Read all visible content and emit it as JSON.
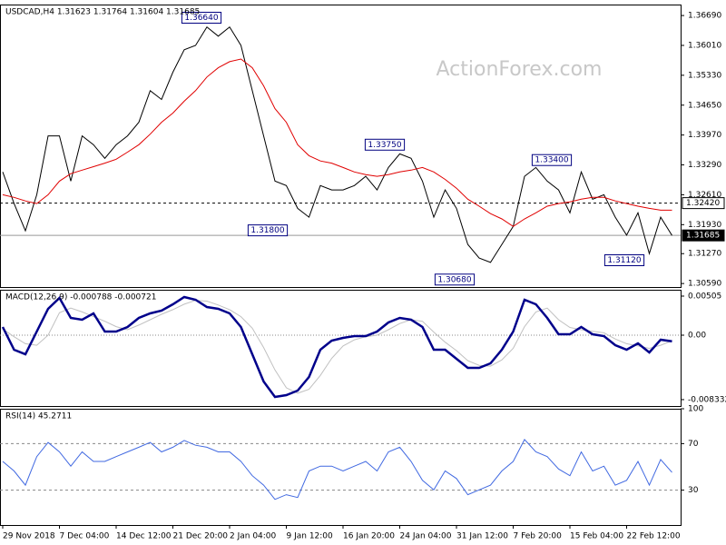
{
  "chart_data": [
    {
      "type": "line",
      "title": "USDCAD,H4 1.31623 1.31764 1.31604 1.31685",
      "watermark": "ActionForex.com",
      "ylim": [
        1.3051,
        1.3694
      ],
      "yticks": [
        {
          "value": 1.3669,
          "label": "1.36690"
        },
        {
          "value": 1.3601,
          "label": "1.36010"
        },
        {
          "value": 1.3533,
          "label": "1.35330"
        },
        {
          "value": 1.3465,
          "label": "1.34650"
        },
        {
          "value": 1.3397,
          "label": "1.33970"
        },
        {
          "value": 1.3329,
          "label": "1.33290"
        },
        {
          "value": 1.3261,
          "label": "1.32610"
        },
        {
          "value": 1.3193,
          "label": "1.31930"
        },
        {
          "value": 1.3127,
          "label": "1.31270"
        },
        {
          "value": 1.3059,
          "label": "1.30590"
        }
      ],
      "hlines": [
        {
          "value": 1.3242,
          "label": "1.32420",
          "style": "dashed"
        },
        {
          "value": 1.31685,
          "label": "1.31685",
          "style": "current"
        }
      ],
      "annotations": [
        {
          "value": 1.3664,
          "label": "1.36640"
        },
        {
          "value": 1.3375,
          "label": "1.33750"
        },
        {
          "value": 1.318,
          "label": "1.31800"
        },
        {
          "value": 1.3068,
          "label": "1.30680"
        },
        {
          "value": 1.334,
          "label": "1.33400"
        },
        {
          "value": 1.3112,
          "label": "1.31120"
        }
      ],
      "series": [
        {
          "color": "#000000",
          "values": [
            1.3313,
            1.3241,
            1.3179,
            1.3261,
            1.3395,
            1.3395,
            1.3292,
            1.3395,
            1.3375,
            1.3344,
            1.3375,
            1.3395,
            1.3426,
            1.3498,
            1.3478,
            1.354,
            1.3591,
            1.3601,
            1.3643,
            1.3622,
            1.3643,
            1.3601,
            1.3498,
            1.3395,
            1.3292,
            1.3282,
            1.323,
            1.321,
            1.3282,
            1.3272,
            1.3272,
            1.3282,
            1.3303,
            1.3272,
            1.3323,
            1.3354,
            1.3344,
            1.3292,
            1.321,
            1.3272,
            1.323,
            1.3148,
            1.3117,
            1.3107,
            1.3148,
            1.3189,
            1.3303,
            1.3323,
            1.3292,
            1.3272,
            1.322,
            1.3313,
            1.3251,
            1.3261,
            1.321,
            1.3169,
            1.322,
            1.3127,
            1.321,
            1.31685
          ]
        },
        {
          "color": "#e00000",
          "values": [
            1.3261,
            1.3255,
            1.3247,
            1.3241,
            1.3261,
            1.3292,
            1.3309,
            1.3317,
            1.3325,
            1.3333,
            1.3342,
            1.3358,
            1.3375,
            1.3399,
            1.3426,
            1.3447,
            1.3474,
            1.3498,
            1.3529,
            1.355,
            1.3564,
            1.357,
            1.355,
            1.3509,
            1.3457,
            1.3426,
            1.3375,
            1.335,
            1.3338,
            1.3333,
            1.3323,
            1.3313,
            1.3307,
            1.3303,
            1.3307,
            1.3313,
            1.3317,
            1.3323,
            1.3313,
            1.3296,
            1.3276,
            1.3251,
            1.3235,
            1.3218,
            1.3206,
            1.3189,
            1.3206,
            1.322,
            1.3235,
            1.3241,
            1.3245,
            1.3251,
            1.3255,
            1.3255,
            1.3247,
            1.3241,
            1.3235,
            1.323,
            1.3226,
            1.3226
          ]
        }
      ]
    },
    {
      "type": "line",
      "title": "MACD(12,26,9) -0.000788 -0.000721",
      "zero_line": true,
      "ylim": [
        -0.00916,
        0.00587
      ],
      "yticks": [
        {
          "value": 0.00505,
          "label": "0.00505"
        },
        {
          "value": 0,
          "label": "0.00"
        },
        {
          "value": -0.008332,
          "label": "-0.008332"
        }
      ],
      "series": [
        {
          "color": "#c0c0c0",
          "values": [
            0.0008,
            -0.0002,
            -0.0011,
            -0.0013,
            0.0,
            0.0029,
            0.0035,
            0.003,
            0.0024,
            0.0018,
            0.0011,
            0.0007,
            0.0013,
            0.002,
            0.0027,
            0.0033,
            0.004,
            0.0045,
            0.0044,
            0.0039,
            0.0033,
            0.0024,
            0.0009,
            -0.0016,
            -0.0045,
            -0.0068,
            -0.0075,
            -0.007,
            -0.0052,
            -0.003,
            -0.0014,
            -0.0006,
            -0.0002,
            0.0,
            0.0007,
            0.0015,
            0.002,
            0.0018,
            0.0004,
            -0.0009,
            -0.002,
            -0.0033,
            -0.0039,
            -0.004,
            -0.0032,
            -0.0017,
            0.0011,
            0.003,
            0.0035,
            0.002,
            0.001,
            0.0007,
            0.0005,
            0.0003,
            -0.0005,
            -0.0011,
            -0.0014,
            -0.0017,
            -0.0013,
            -0.000721
          ]
        },
        {
          "color": "#00008b",
          "values": [
            0.00106,
            -0.00188,
            -0.00247,
            0.00047,
            0.00341,
            0.00481,
            0.00223,
            0.002,
            0.00282,
            0.00047,
            0.00047,
            0.00106,
            0.00223,
            0.00282,
            0.00317,
            0.00399,
            0.00493,
            0.00458,
            0.00364,
            0.00341,
            0.00282,
            0.00106,
            -0.00247,
            -0.00599,
            -0.00799,
            -0.00775,
            -0.00716,
            -0.0054,
            -0.00188,
            -0.0007,
            -0.00035,
            -0.00012,
            -0.00012,
            0.00047,
            0.00164,
            0.00223,
            0.002,
            0.00106,
            -0.00188,
            -0.00188,
            -0.00305,
            -0.00423,
            -0.00423,
            -0.00364,
            -0.00188,
            0.00047,
            0.00458,
            0.00399,
            0.00223,
            0.00012,
            0.00012,
            0.00106,
            0.00012,
            -0.00012,
            -0.00129,
            -0.00188,
            -0.00106,
            -0.00223,
            -0.00059,
            -0.000788
          ]
        }
      ]
    },
    {
      "type": "line",
      "title": "RSI(14) 45.2711",
      "dashed_grid": true,
      "ylim": [
        0,
        100
      ],
      "yticks": [
        100,
        70,
        30
      ],
      "categories": [
        "29 Nov 2018",
        null,
        null,
        null,
        null,
        "7 Dec 04:00",
        null,
        null,
        null,
        null,
        "14 Dec 12:00",
        null,
        null,
        null,
        null,
        "21 Dec 20:00",
        null,
        null,
        null,
        null,
        "2 Jan 04:00",
        null,
        null,
        null,
        null,
        "9 Jan 12:00",
        null,
        null,
        null,
        null,
        "16 Jan 20:00",
        null,
        null,
        null,
        null,
        "24 Jan 04:00",
        null,
        null,
        null,
        null,
        "31 Jan 12:00",
        null,
        null,
        null,
        null,
        "7 Feb 20:00",
        null,
        null,
        null,
        null,
        "15 Feb 04:00",
        null,
        null,
        null,
        null,
        "22 Feb 12:00",
        null,
        null,
        null,
        null
      ],
      "series": [
        {
          "color": "#4169e1",
          "values": [
            54.7,
            46.5,
            34.3,
            58.8,
            71.0,
            62.9,
            50.6,
            62.9,
            54.7,
            54.7,
            58.8,
            62.9,
            66.9,
            71.0,
            62.9,
            66.9,
            72.7,
            68.6,
            66.9,
            62.9,
            62.9,
            54.7,
            42.4,
            34.3,
            22.0,
            26.1,
            23.7,
            46.5,
            50.6,
            50.6,
            46.5,
            50.6,
            54.7,
            46.5,
            62.9,
            66.9,
            54.7,
            38.4,
            30.2,
            46.5,
            40.0,
            26.1,
            30.2,
            34.3,
            46.5,
            54.7,
            73.5,
            62.9,
            58.8,
            48.2,
            42.4,
            62.9,
            46.5,
            50.6,
            34.3,
            38.4,
            54.7,
            34.3,
            56.3,
            45.2711
          ]
        }
      ]
    }
  ]
}
